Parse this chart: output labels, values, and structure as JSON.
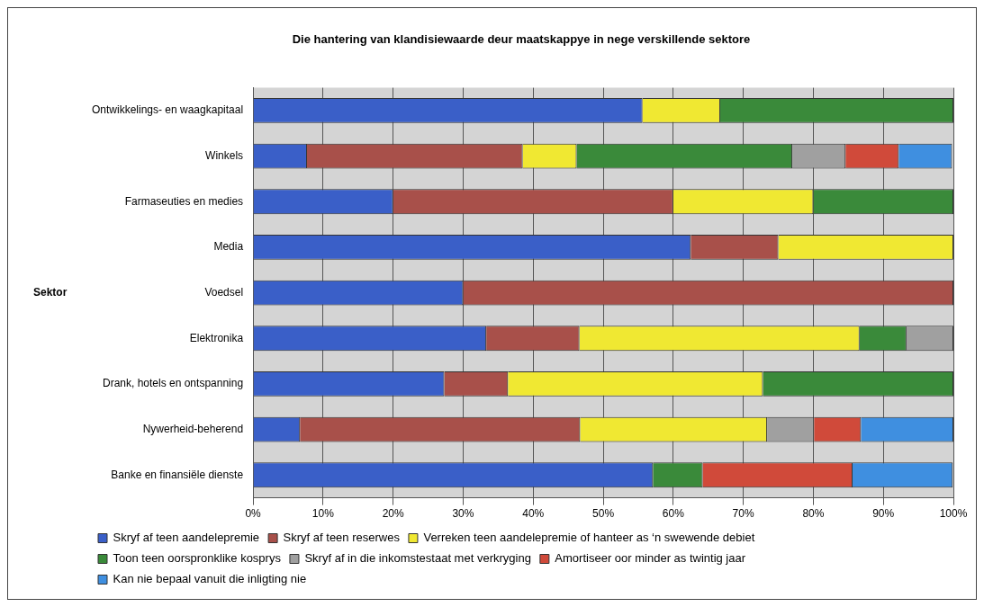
{
  "chart_data": {
    "type": "bar",
    "orientation": "horizontal",
    "stacked": true,
    "title": "Die hantering van klandisiewaarde deur maatskappye in nege verskillende sektore",
    "ylabel": "Sektor",
    "categories": [
      "Ontwikkelings- en waagkapitaal",
      "Winkels",
      "Farmaseuties en medies",
      "Media",
      "Voedsel",
      "Elektronika",
      "Drank, hotels en ontspanning",
      "Nywerheid-beherend",
      "Banke en finansiële dienste"
    ],
    "series": [
      {
        "name": "Skryf af teen aandelepremie",
        "color": "#3a5fc8",
        "values": [
          55.6,
          7.7,
          20,
          62.5,
          30,
          33.3,
          27.3,
          6.7,
          57.1
        ]
      },
      {
        "name": "Skryf af teen reserwes",
        "color": "#a8504a",
        "values": [
          null,
          30.8,
          40,
          12.5,
          70,
          13.3,
          9.1,
          40,
          null
        ]
      },
      {
        "name": "Verreken teen aandelepremie of hanteer as ‘n swewende debiet",
        "color": "#f0e832",
        "values": [
          11.1,
          7.7,
          20,
          25,
          null,
          40,
          36.4,
          26.7,
          null
        ]
      },
      {
        "name": "Toon teen oorspronklike kosprys",
        "color": "#3a8a3a",
        "values": [
          33.3,
          30.8,
          20,
          null,
          null,
          6.7,
          27.2,
          null,
          7.1
        ]
      },
      {
        "name": "Skryf af in die inkomstestaat met verkryging",
        "color": "#a0a0a0",
        "values": [
          null,
          7.6,
          null,
          null,
          null,
          6.7,
          null,
          6.7,
          null
        ]
      },
      {
        "name": "Amortiseer oor minder as twintig jaar",
        "color": "#d04a3a",
        "values": [
          null,
          7.6,
          null,
          null,
          null,
          null,
          null,
          6.7,
          21.4
        ]
      },
      {
        "name": "Kan nie bepaal vanuit die inligting nie",
        "color": "#3f8fe0",
        "values": [
          null,
          7.6,
          null,
          null,
          null,
          null,
          null,
          13.2,
          14.3
        ]
      }
    ],
    "xlim": [
      0,
      100
    ],
    "xticks": [
      {
        "value": 0,
        "label": "0%"
      },
      {
        "value": 10,
        "label": "10%"
      },
      {
        "value": 20,
        "label": "20%"
      },
      {
        "value": 30,
        "label": "30%"
      },
      {
        "value": 40,
        "label": "40%"
      },
      {
        "value": 50,
        "label": "50%"
      },
      {
        "value": 60,
        "label": "60%"
      },
      {
        "value": 70,
        "label": "70%"
      },
      {
        "value": 80,
        "label": "80%"
      },
      {
        "value": 90,
        "label": "90%"
      },
      {
        "value": 100,
        "label": "100%"
      }
    ],
    "grid": "x",
    "legend": "bottom"
  }
}
